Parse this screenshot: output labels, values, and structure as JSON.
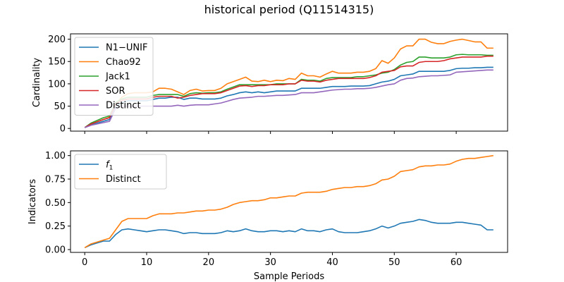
{
  "chart_data": {
    "title": "historical period (Q11514315)",
    "type": "line",
    "xlabel": "Sample Periods",
    "xticks": [
      0,
      10,
      20,
      30,
      40,
      50,
      60
    ],
    "xlim": [
      -2.3,
      68.3
    ],
    "panels": [
      {
        "name": "top",
        "ylabel": "Cardinality",
        "ylim": [
          -6,
          212
        ],
        "yticks": [
          0,
          50,
          100,
          150,
          200
        ],
        "legend_position": "upper-left",
        "series": [
          {
            "name": "N1−UNIF",
            "color": "#1f77b4",
            "values": [
              2,
              8,
              12,
              16,
              20,
              50,
              58,
              62,
              62,
              62,
              62,
              65,
              68,
              68,
              70,
              70,
              65,
              68,
              68,
              66,
              66,
              66,
              68,
              73,
              76,
              80,
              82,
              80,
              82,
              80,
              82,
              84,
              84,
              84,
              84,
              90,
              90,
              90,
              90,
              92,
              94,
              94,
              94,
              95,
              95,
              95,
              96,
              100,
              104,
              106,
              110,
              118,
              120,
              122,
              128,
              128,
              128,
              128,
              128,
              130,
              134,
              135,
              135,
              136,
              136,
              137,
              137
            ]
          },
          {
            "name": "Chao92",
            "color": "#ff7f0e",
            "values": [
              2,
              10,
              15,
              20,
              25,
              55,
              70,
              78,
              80,
              80,
              80,
              82,
              90,
              90,
              88,
              82,
              76,
              85,
              88,
              84,
              85,
              85,
              90,
              100,
              105,
              110,
              115,
              106,
              105,
              108,
              105,
              108,
              107,
              112,
              110,
              124,
              118,
              118,
              115,
              122,
              128,
              124,
              124,
              124,
              126,
              126,
              128,
              134,
              152,
              146,
              158,
              178,
              185,
              185,
              200,
              200,
              193,
              190,
              190,
              195,
              198,
              200,
              197,
              194,
              194,
              180,
              180
            ]
          },
          {
            "name": "Jack1",
            "color": "#2ca02c",
            "values": [
              2,
              12,
              18,
              24,
              28,
              58,
              66,
              70,
              70,
              70,
              70,
              74,
              76,
              76,
              76,
              76,
              72,
              78,
              80,
              79,
              80,
              80,
              82,
              88,
              93,
              98,
              98,
              98,
              98,
              98,
              98,
              100,
              100,
              100,
              100,
              110,
              108,
              108,
              106,
              112,
              114,
              114,
              114,
              114,
              116,
              116,
              118,
              120,
              124,
              126,
              132,
              142,
              148,
              150,
              160,
              160,
              158,
              158,
              158,
              160,
              165,
              166,
              165,
              165,
              165,
              164,
              164
            ]
          },
          {
            "name": "SOR",
            "color": "#d62728",
            "values": [
              2,
              10,
              15,
              20,
              24,
              55,
              63,
              66,
              66,
              66,
              66,
              70,
              72,
              72,
              72,
              68,
              70,
              74,
              76,
              78,
              78,
              78,
              80,
              85,
              90,
              95,
              96,
              94,
              96,
              96,
              98,
              98,
              98,
              100,
              100,
              108,
              106,
              106,
              104,
              108,
              110,
              112,
              112,
              112,
              112,
              112,
              114,
              118,
              126,
              128,
              130,
              138,
              140,
              140,
              148,
              150,
              150,
              150,
              152,
              156,
              158,
              160,
              160,
              160,
              160,
              162,
              162
            ]
          },
          {
            "name": "Distinct",
            "color": "#9467bd",
            "values": [
              2,
              7,
              10,
              13,
              16,
              45,
              50,
              50,
              50,
              50,
              50,
              50,
              50,
              50,
              50,
              52,
              50,
              52,
              53,
              53,
              53,
              55,
              57,
              61,
              65,
              68,
              69,
              70,
              72,
              72,
              73,
              74,
              74,
              75,
              76,
              80,
              80,
              80,
              82,
              84,
              86,
              87,
              88,
              88,
              89,
              89,
              90,
              92,
              95,
              98,
              100,
              108,
              112,
              113,
              116,
              117,
              118,
              118,
              119,
              120,
              126,
              127,
              128,
              129,
              130,
              131,
              131
            ]
          }
        ]
      },
      {
        "name": "bottom",
        "ylabel": "Indicators",
        "ylim": [
          -0.03,
          1.05
        ],
        "yticks": [
          0.0,
          0.25,
          0.5,
          0.75,
          1.0
        ],
        "ytick_labels": [
          "0.00",
          "0.25",
          "0.50",
          "0.75",
          "1.00"
        ],
        "legend_position": "upper-left",
        "series": [
          {
            "name": "f1",
            "legend_main": "f",
            "legend_sub": "1",
            "color": "#1f77b4",
            "values": [
              0.02,
              0.05,
              0.07,
              0.09,
              0.09,
              0.16,
              0.21,
              0.22,
              0.21,
              0.2,
              0.19,
              0.2,
              0.21,
              0.21,
              0.2,
              0.19,
              0.17,
              0.18,
              0.18,
              0.17,
              0.17,
              0.17,
              0.18,
              0.2,
              0.19,
              0.2,
              0.22,
              0.2,
              0.19,
              0.19,
              0.2,
              0.2,
              0.19,
              0.2,
              0.19,
              0.22,
              0.2,
              0.2,
              0.19,
              0.21,
              0.22,
              0.19,
              0.18,
              0.18,
              0.18,
              0.19,
              0.2,
              0.22,
              0.25,
              0.23,
              0.25,
              0.28,
              0.29,
              0.3,
              0.32,
              0.31,
              0.29,
              0.28,
              0.28,
              0.28,
              0.29,
              0.29,
              0.28,
              0.27,
              0.26,
              0.21,
              0.21
            ]
          },
          {
            "name": "Distinct",
            "color": "#ff7f0e",
            "values": [
              0.02,
              0.06,
              0.08,
              0.1,
              0.12,
              0.21,
              0.3,
              0.33,
              0.33,
              0.33,
              0.33,
              0.36,
              0.38,
              0.38,
              0.38,
              0.39,
              0.39,
              0.4,
              0.41,
              0.41,
              0.42,
              0.42,
              0.43,
              0.45,
              0.48,
              0.5,
              0.51,
              0.52,
              0.52,
              0.53,
              0.55,
              0.55,
              0.56,
              0.57,
              0.57,
              0.6,
              0.61,
              0.61,
              0.61,
              0.62,
              0.64,
              0.65,
              0.66,
              0.66,
              0.67,
              0.67,
              0.68,
              0.7,
              0.74,
              0.75,
              0.78,
              0.83,
              0.84,
              0.85,
              0.88,
              0.89,
              0.89,
              0.9,
              0.9,
              0.91,
              0.94,
              0.96,
              0.97,
              0.97,
              0.98,
              0.99,
              1.0
            ]
          }
        ]
      }
    ]
  }
}
